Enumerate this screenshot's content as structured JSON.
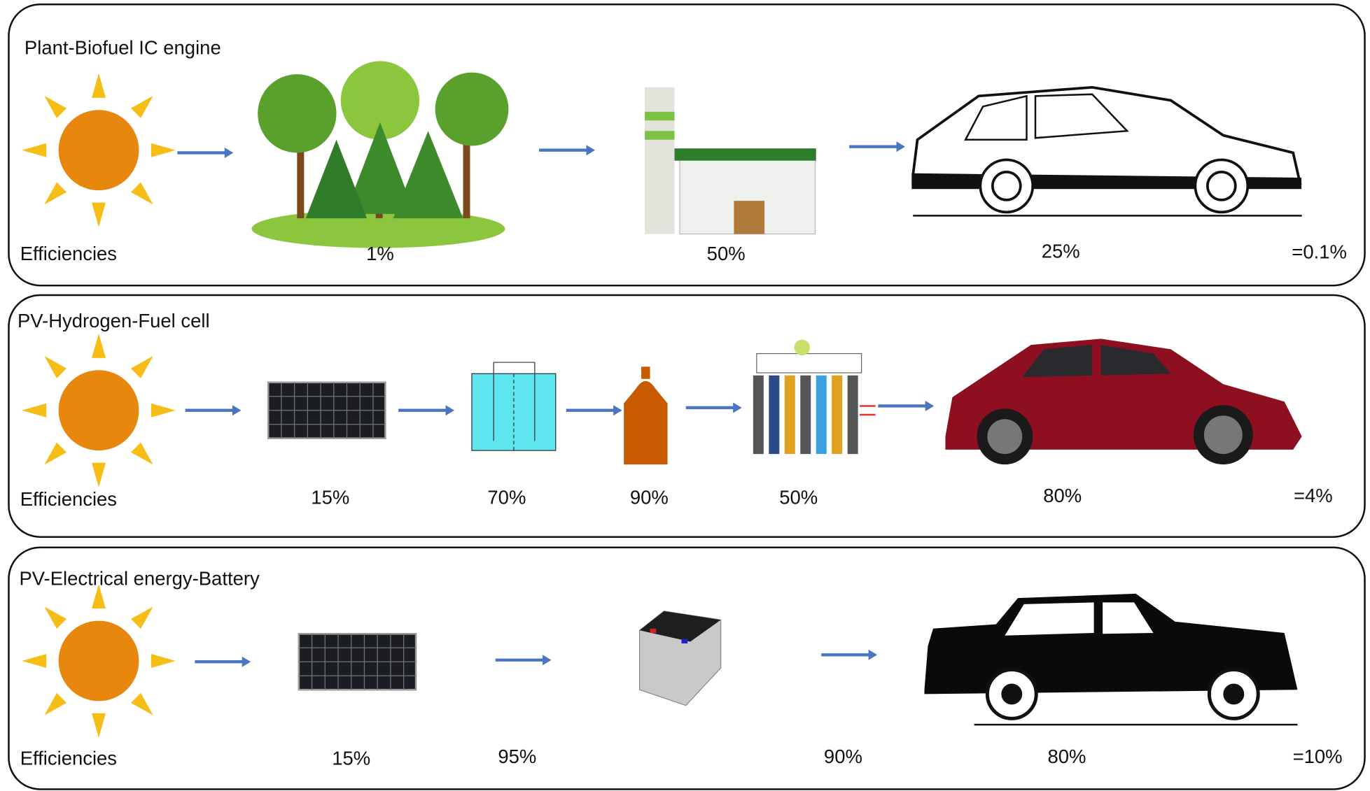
{
  "panels": [
    {
      "title": "Plant-Biofuel  IC engine",
      "label": "Efficiencies",
      "steps": [
        "1%",
        "50%",
        "25%"
      ],
      "total": "=0.1%"
    },
    {
      "title": "PV-Hydrogen-Fuel cell",
      "label": "Efficiencies",
      "steps": [
        "15%",
        "70%",
        "90%",
        "50%",
        "80%"
      ],
      "total": "=4%"
    },
    {
      "title": "PV-Electrical energy-Battery",
      "label": "Efficiencies",
      "steps": [
        "15%",
        "95%",
        "90%",
        "80%"
      ],
      "total": "=10%"
    }
  ]
}
